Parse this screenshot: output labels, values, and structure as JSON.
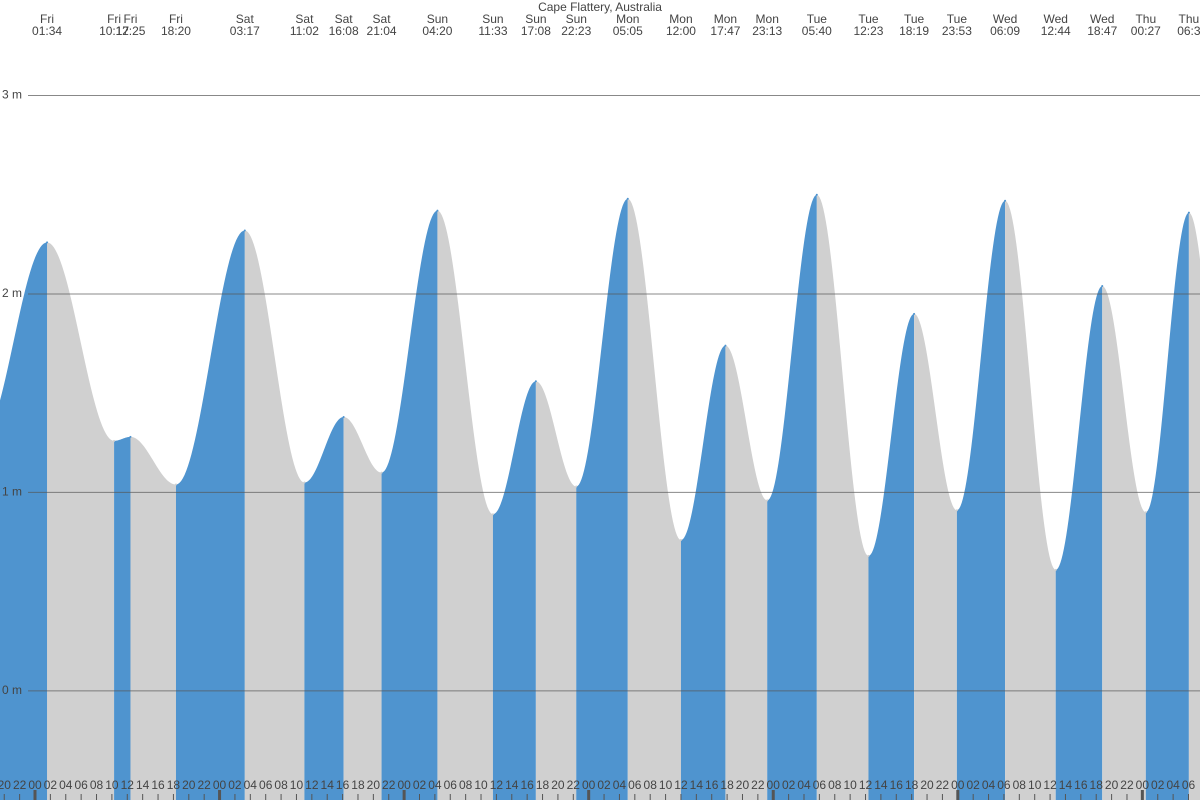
{
  "chart_data": {
    "type": "tide",
    "title": "Cape Flattery, Australia",
    "extremes": [
      {
        "day": "Fri",
        "time": "01:34",
        "height": 2.26
      },
      {
        "day": "Fri",
        "time": "10:17",
        "height": 1.26
      },
      {
        "day": "Fri",
        "time": "12:25",
        "height": 1.28
      },
      {
        "day": "Fri",
        "time": "18:20",
        "height": 1.04
      },
      {
        "day": "Sat",
        "time": "03:17",
        "height": 2.32
      },
      {
        "day": "Sat",
        "time": "11:02",
        "height": 1.05
      },
      {
        "day": "Sat",
        "time": "16:08",
        "height": 1.38
      },
      {
        "day": "Sat",
        "time": "21:04",
        "height": 1.1
      },
      {
        "day": "Sun",
        "time": "04:20",
        "height": 2.42
      },
      {
        "day": "Sun",
        "time": "11:33",
        "height": 0.89
      },
      {
        "day": "Sun",
        "time": "17:08",
        "height": 1.56
      },
      {
        "day": "Sun",
        "time": "22:23",
        "height": 1.03
      },
      {
        "day": "Mon",
        "time": "05:05",
        "height": 2.48
      },
      {
        "day": "Mon",
        "time": "12:00",
        "height": 0.76
      },
      {
        "day": "Mon",
        "time": "17:47",
        "height": 1.74
      },
      {
        "day": "Mon",
        "time": "23:13",
        "height": 0.96
      },
      {
        "day": "Tue",
        "time": "05:40",
        "height": 2.5
      },
      {
        "day": "Tue",
        "time": "12:23",
        "height": 0.68
      },
      {
        "day": "Tue",
        "time": "18:19",
        "height": 1.9
      },
      {
        "day": "Tue",
        "time": "23:53",
        "height": 0.91
      },
      {
        "day": "Wed",
        "time": "06:09",
        "height": 2.47
      },
      {
        "day": "Wed",
        "time": "12:44",
        "height": 0.61
      },
      {
        "day": "Wed",
        "time": "18:47",
        "height": 2.04
      },
      {
        "day": "Thu",
        "time": "00:27",
        "height": 0.9
      },
      {
        "day": "Thu",
        "time": "06:3",
        "height": 2.41
      }
    ],
    "hour_labels": [
      "20",
      "22",
      "00",
      "02",
      "04",
      "06",
      "08",
      "10",
      "12",
      "14",
      "16",
      "18",
      "20",
      "22",
      "00",
      "02",
      "04",
      "06",
      "08",
      "10",
      "12",
      "14",
      "16",
      "18",
      "20",
      "22",
      "00",
      "02",
      "04",
      "06",
      "08",
      "10",
      "12",
      "14",
      "16",
      "18",
      "20",
      "22",
      "00",
      "02",
      "04",
      "06",
      "08",
      "10",
      "12",
      "14",
      "16",
      "18",
      "20",
      "22",
      "00",
      "02",
      "04",
      "06",
      "08",
      "10",
      "12",
      "14",
      "16",
      "18",
      "20",
      "22",
      "00",
      "02",
      "04",
      "06",
      "08",
      "10",
      "12",
      "14",
      "16",
      "18",
      "20",
      "22",
      "00",
      "02",
      "04",
      "06"
    ],
    "ylim": [
      -0.55,
      3.28
    ],
    "yticks": [
      {
        "value": 0,
        "label": "0 m"
      },
      {
        "value": 1,
        "label": "1 m"
      },
      {
        "value": 2,
        "label": "2 m"
      },
      {
        "value": 3,
        "label": "3 m"
      }
    ],
    "rising_color": "#4f94cf",
    "falling_color": "#d0d0d0",
    "grid": true
  }
}
